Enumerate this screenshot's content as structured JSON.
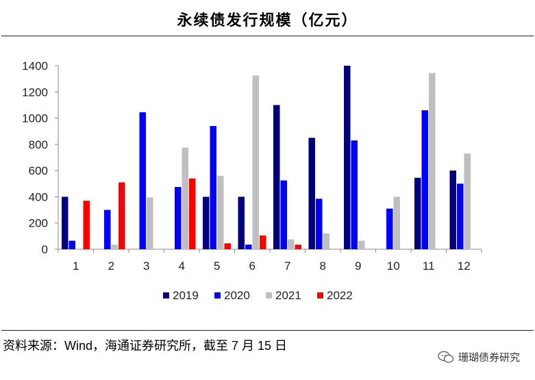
{
  "header": {
    "title": "永续债发行规模（亿元）"
  },
  "footer": {
    "source": "资料来源：Wind，海通证券研究所，截至 7 月 15 日",
    "watermark": "珊瑚债券研究"
  },
  "chart_data": {
    "type": "bar",
    "title": "永续债发行规模（亿元）",
    "xlabel": "",
    "ylabel": "",
    "ylim": [
      0,
      1400
    ],
    "yticks": [
      0,
      200,
      400,
      600,
      800,
      1000,
      1200,
      1400
    ],
    "categories": [
      "1",
      "2",
      "3",
      "4",
      "5",
      "6",
      "7",
      "8",
      "9",
      "10",
      "11",
      "12"
    ],
    "series": [
      {
        "name": "2019",
        "color": "#00007f",
        "values": [
          400,
          0,
          0,
          0,
          400,
          400,
          1100,
          850,
          1400,
          0,
          545,
          600
        ]
      },
      {
        "name": "2020",
        "color": "#0000ff",
        "values": [
          65,
          300,
          1045,
          475,
          940,
          35,
          525,
          385,
          830,
          310,
          1060,
          500
        ]
      },
      {
        "name": "2021",
        "color": "#bfbfbf",
        "values": [
          0,
          35,
          395,
          775,
          560,
          1325,
          75,
          120,
          65,
          400,
          1345,
          730
        ]
      },
      {
        "name": "2022",
        "color": "#ff0000",
        "values": [
          370,
          510,
          0,
          540,
          45,
          105,
          35,
          0,
          0,
          0,
          0,
          0
        ]
      }
    ],
    "legend_position": "bottom",
    "grid": false
  }
}
